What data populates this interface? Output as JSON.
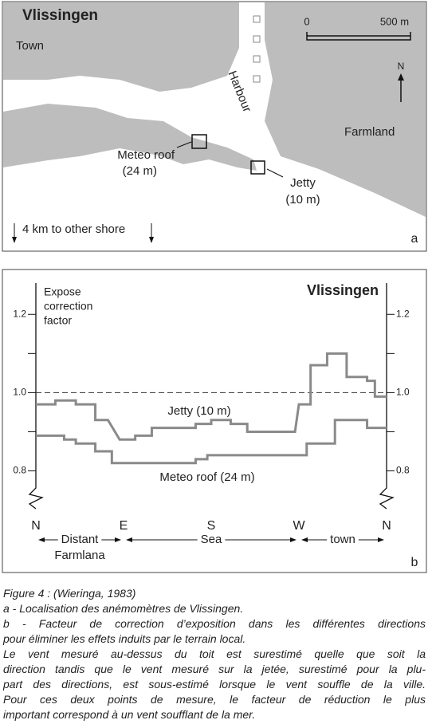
{
  "map": {
    "title": "Vlissingen",
    "town": "Town",
    "harbour": "Harbour",
    "farmland": "Farmland",
    "meteo": [
      "Meteo roof",
      "(24 m)"
    ],
    "jetty": [
      "Jetty",
      "(10 m)"
    ],
    "scale": [
      "0",
      "500 m"
    ],
    "north": "N",
    "shore": "4 km to other shore",
    "panel": "a"
  },
  "chart_data": {
    "type": "line",
    "title": "Vlissingen",
    "ylabel": [
      "Expose",
      "correction",
      "factor"
    ],
    "panel": "b",
    "xlim": [
      0,
      360
    ],
    "xticks": [
      {
        "value": 0,
        "label": "N"
      },
      {
        "value": 90,
        "label": "E"
      },
      {
        "value": 180,
        "label": "S"
      },
      {
        "value": 270,
        "label": "W"
      },
      {
        "value": 360,
        "label": "N"
      }
    ],
    "ylim": [
      0.74,
      1.28
    ],
    "yticks": [
      0.8,
      {
        "value": 1,
        "label": "1.0"
      },
      1.2
    ],
    "minor_yticks": [
      0.9,
      1.1
    ],
    "reference_line": 1,
    "sectors": [
      {
        "label": [
          "Distant",
          "Farmlana"
        ],
        "from": 0,
        "to": 90
      },
      {
        "label": [
          "Sea"
        ],
        "from": 90,
        "to": 270
      },
      {
        "label": [
          "town"
        ],
        "from": 270,
        "to": 360
      }
    ],
    "series": [
      {
        "name": "Jetty (10 m)",
        "color": "#8a8a8a",
        "x": [
          0,
          20,
          20,
          41,
          41,
          61,
          61,
          74,
          86,
          102,
          102,
          119,
          119,
          164,
          164,
          180,
          180,
          200,
          200,
          217,
          217,
          266,
          270,
          282,
          282,
          299,
          299,
          319,
          319,
          340,
          340,
          348,
          348,
          360
        ],
        "values": [
          0.97,
          0.97,
          0.98,
          0.98,
          0.97,
          0.97,
          0.93,
          0.93,
          0.88,
          0.88,
          0.89,
          0.89,
          0.91,
          0.91,
          0.92,
          0.92,
          0.93,
          0.93,
          0.92,
          0.92,
          0.9,
          0.9,
          0.97,
          0.97,
          1.07,
          1.07,
          1.1,
          1.1,
          1.04,
          1.04,
          1.03,
          1.03,
          0.99,
          0.99
        ]
      },
      {
        "name": "Meteo roof (24 m)",
        "color": "#8a8a8a",
        "x": [
          0,
          29,
          29,
          41,
          41,
          61,
          61,
          78,
          78,
          164,
          164,
          176,
          176,
          278,
          278,
          307,
          307,
          340,
          340,
          360
        ],
        "values": [
          0.89,
          0.89,
          0.88,
          0.88,
          0.87,
          0.87,
          0.85,
          0.85,
          0.82,
          0.82,
          0.83,
          0.83,
          0.84,
          0.84,
          0.87,
          0.87,
          0.93,
          0.93,
          0.91,
          0.91
        ]
      }
    ]
  },
  "caption": {
    "lines": [
      "Figure 4 : (Wieringa, 1983)",
      "a - Localisation des anémomètres de Vlissingen.",
      "b - Facteur de correction d’exposition dans les différentes directions",
      "pour éliminer les effets induits par le terrain local.",
      "Le vent mesuré au-dessus du toit est surestimé quelle que soit la",
      "direction tandis que le vent mesuré sur la jetée, surestimé pour la plu-",
      "part des directions, est sous-estimé lorsque le vent souffle de la ville.",
      "Pour ces deux points de mesure, le facteur de réduction le plus",
      "important correspond à un vent soufflant de la mer."
    ]
  }
}
